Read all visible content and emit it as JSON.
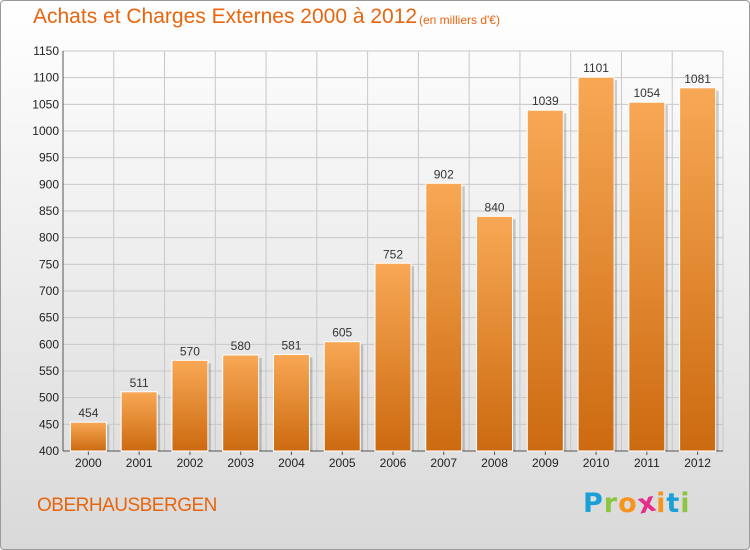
{
  "header": {
    "title": "Achats et Charges Externes 2000 à 2012",
    "subtitle": "(en milliers d'€)"
  },
  "footer": {
    "commune": "OBERHAUSBERGEN",
    "logo_letters": [
      "P",
      "r",
      "o",
      "x",
      "i",
      "t",
      "i"
    ],
    "logo_colors": [
      "#1a9fd9",
      "#8cc63f",
      "#f7941d",
      "#e62e8b",
      "#f7941d",
      "#1a9fd9",
      "#8cc63f"
    ]
  },
  "colors": {
    "accent": "#e8650d",
    "bar_light": "#f8a855",
    "bar_dark": "#cc6a10"
  },
  "chart_data": {
    "type": "bar",
    "title": "Achats et Charges Externes 2000 à 2012",
    "subtitle": "(en milliers d'€)",
    "categories": [
      "2000",
      "2001",
      "2002",
      "2003",
      "2004",
      "2005",
      "2006",
      "2007",
      "2008",
      "2009",
      "2010",
      "2011",
      "2012"
    ],
    "values": [
      454,
      511,
      570,
      580,
      581,
      605,
      752,
      902,
      840,
      1039,
      1101,
      1054,
      1081
    ],
    "ylim": [
      400,
      1150
    ],
    "yticks": [
      400,
      450,
      500,
      550,
      600,
      650,
      700,
      750,
      800,
      850,
      900,
      950,
      1000,
      1050,
      1100,
      1150
    ],
    "grid": true,
    "data_labels": true
  }
}
